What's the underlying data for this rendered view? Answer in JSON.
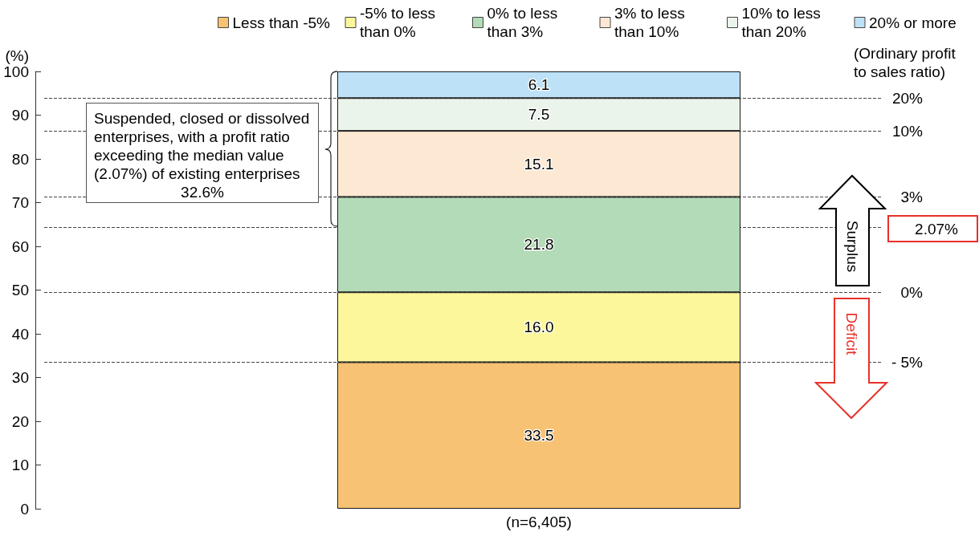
{
  "chart_data": {
    "type": "bar",
    "stacked": true,
    "ylabel": "(%)",
    "categories": [
      "(n=6,405)"
    ],
    "ylim": [
      0,
      100
    ],
    "yticks": [
      0,
      10,
      20,
      30,
      40,
      50,
      60,
      70,
      80,
      90,
      100
    ],
    "grid": false,
    "legend": "top",
    "series": [
      {
        "name": "Less than -5%",
        "color": "#f7c273",
        "values": [
          33.5
        ],
        "value_labels": [
          "33.5"
        ]
      },
      {
        "name": "-5% to less than 0%",
        "color": "#fdf79b",
        "values": [
          16.0
        ],
        "value_labels": [
          "16.0"
        ]
      },
      {
        "name": "0% to less than 3%",
        "color": "#b3dbb7",
        "values": [
          21.8
        ],
        "value_labels": [
          "21.8"
        ]
      },
      {
        "name": "3% to less than 10%",
        "color": "#fde9d3",
        "values": [
          15.1
        ],
        "value_labels": [
          "15.1"
        ]
      },
      {
        "name": "10% to less than 20%",
        "color": "#ebf4eb",
        "values": [
          7.5
        ],
        "value_labels": [
          "7.5"
        ]
      },
      {
        "name": "20% or more",
        "color": "#bde2f7",
        "values": [
          6.1
        ],
        "value_labels": [
          "6.1"
        ]
      }
    ],
    "ref_lines": [
      {
        "axis": "y",
        "value": 93.9,
        "line_style": "dashed"
      },
      {
        "axis": "y",
        "value": 86.4,
        "line_style": "dashed"
      },
      {
        "axis": "y",
        "value": 71.3,
        "line_style": "dashed"
      },
      {
        "axis": "y",
        "value": 64.4,
        "line_style": "dashed"
      },
      {
        "axis": "y",
        "value": 49.5,
        "line_style": "dashed"
      },
      {
        "axis": "y",
        "value": 33.5,
        "line_style": "dashed"
      }
    ],
    "annotations": [
      "(Ordinary profit to sales ratio)",
      "20%",
      "10%",
      "3%",
      "2.07%",
      "0%",
      "- 5%",
      "Suspended, closed or dissolved enterprises, with a profit ratio exceeding the median value (2.07%) of existing enterprises",
      "32.6%",
      "Surplus",
      "Deficit"
    ]
  }
}
